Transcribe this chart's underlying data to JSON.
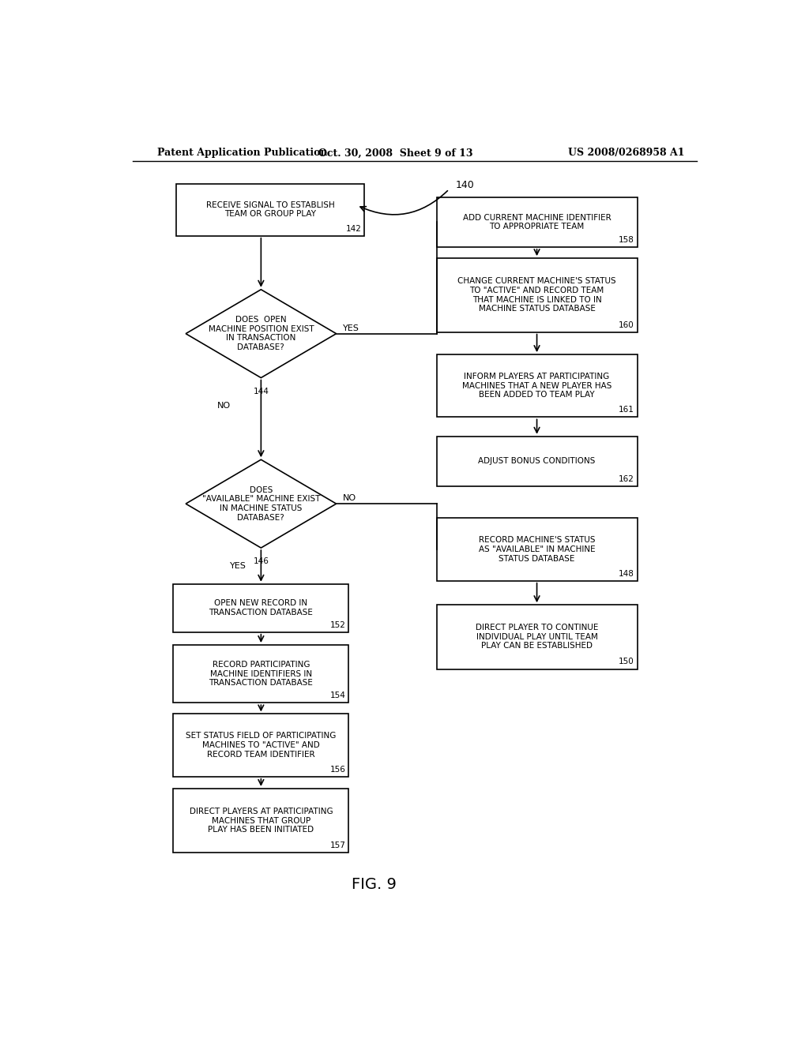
{
  "title_left": "Patent Application Publication",
  "title_center": "Oct. 30, 2008  Sheet 9 of 13",
  "title_right": "US 2008/0268958 A1",
  "fig_label": "FIG. 9",
  "background_color": "#ffffff"
}
